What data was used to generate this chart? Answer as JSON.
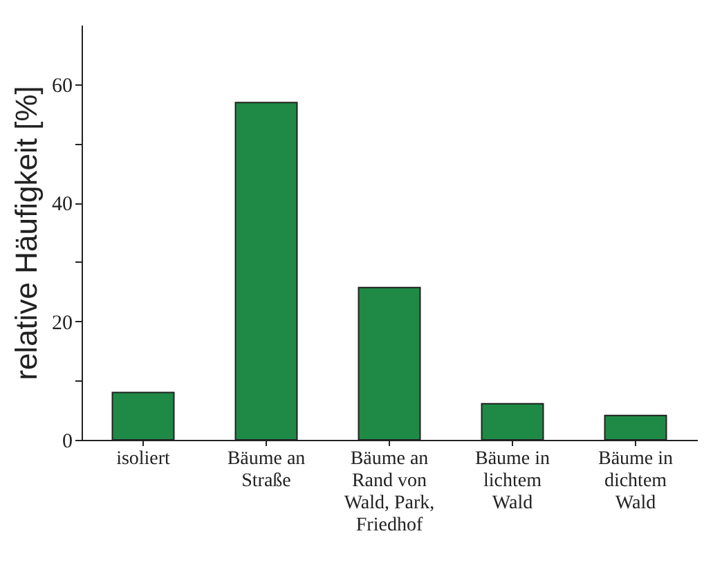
{
  "chart_data": {
    "type": "bar",
    "ylabel": "relative Häufigkeit [%]",
    "categories": [
      "isoliert",
      "Bäume an Straße",
      "Bäume an Rand von Wald, Park, Friedhof",
      "Bäume in lichtem Wald",
      "Bäume in dichtem Wald"
    ],
    "values": [
      8.0,
      56.9,
      25.7,
      6.1,
      4.1
    ],
    "color": "#1e8a45",
    "ylim": [
      0,
      70
    ],
    "yticks": [
      0,
      {
        "value": 10,
        "label": null
      },
      20,
      {
        "value": 30,
        "label": null
      },
      40,
      {
        "value": 50,
        "label": null
      },
      60
    ],
    "grid": false
  }
}
